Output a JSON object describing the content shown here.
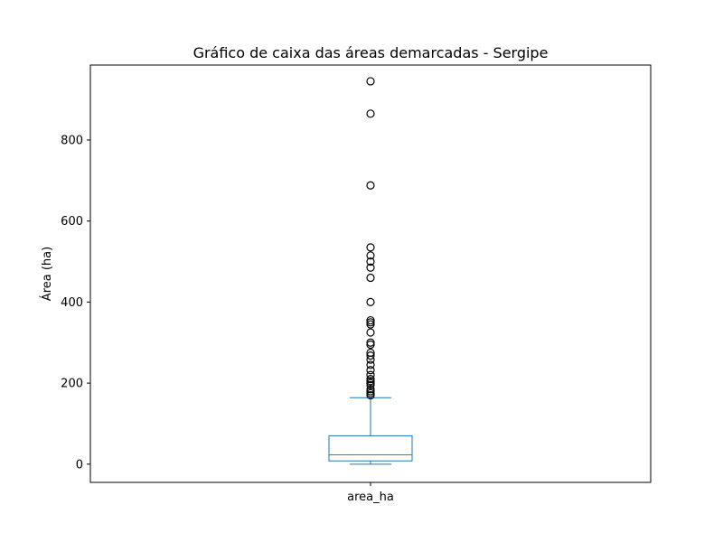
{
  "chart_data": {
    "type": "box",
    "title": "Gráfico de caixa das áreas demarcadas - Sergipe",
    "xlabel": "",
    "ylabel": "Área (ha)",
    "categories": [
      "area_ha"
    ],
    "yticks": [
      0,
      200,
      400,
      600,
      800
    ],
    "ylim": [
      -45,
      985
    ],
    "grid": false,
    "legend": "none",
    "box": {
      "whisker_low": 0,
      "q1": 8,
      "median": 23,
      "q3": 70,
      "whisker_high": 164
    },
    "outliers": [
      170,
      175,
      180,
      185,
      195,
      200,
      205,
      210,
      220,
      232,
      245,
      258,
      268,
      275,
      295,
      300,
      325,
      345,
      350,
      355,
      400,
      460,
      485,
      500,
      515,
      535,
      688,
      865,
      945
    ],
    "colors": {
      "box": "#1f77b4",
      "median": "#2ca02c",
      "outlier": "#000000"
    }
  }
}
